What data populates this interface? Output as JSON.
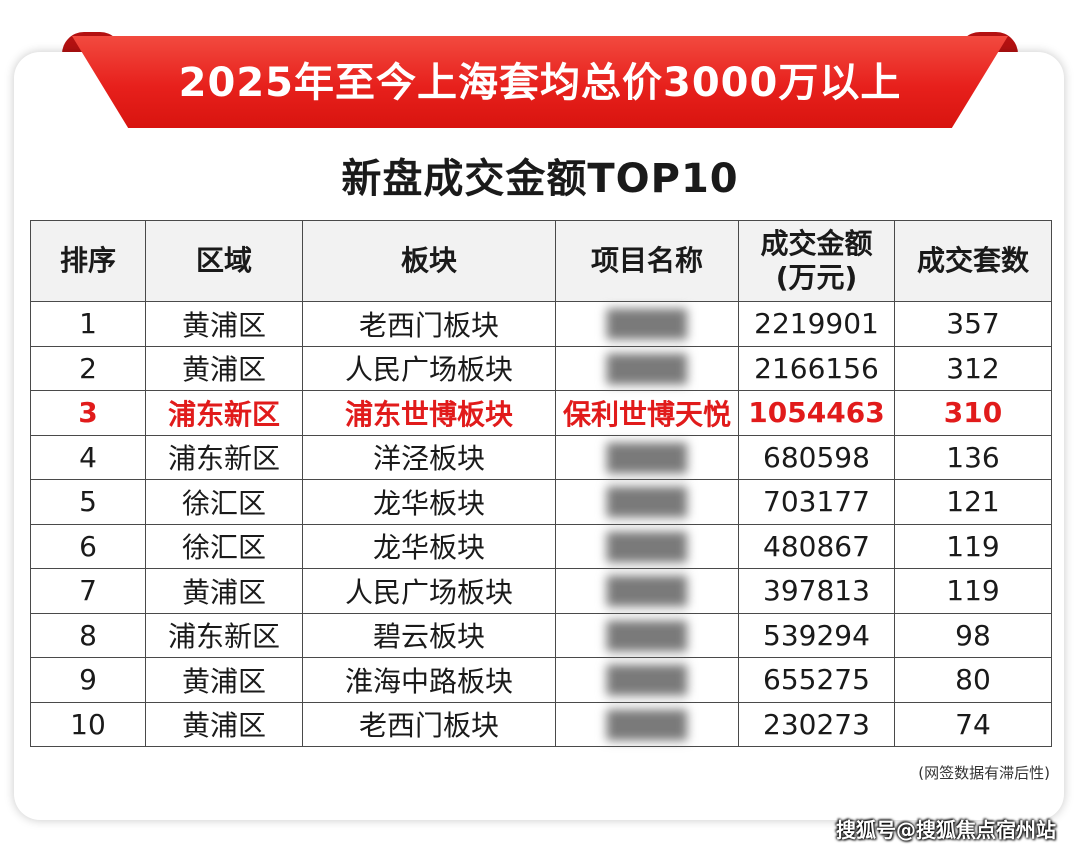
{
  "banner": {
    "title": "2025年至今上海套均总价3000万以上"
  },
  "subtitle": "新盘成交金额TOP10",
  "table": {
    "headers": [
      "排序",
      "区域",
      "板块",
      "项目名称",
      "成交金额\n(万元)",
      "成交套数"
    ],
    "rows": [
      {
        "rank": "1",
        "district": "黄浦区",
        "sector": "老西门板块",
        "project": "",
        "amount": "2219901",
        "units": "357"
      },
      {
        "rank": "2",
        "district": "黄浦区",
        "sector": "人民广场板块",
        "project": "",
        "amount": "2166156",
        "units": "312"
      },
      {
        "rank": "3",
        "district": "浦东新区",
        "sector": "浦东世博板块",
        "project": "保利世博天悦",
        "amount": "1054463",
        "units": "310"
      },
      {
        "rank": "4",
        "district": "浦东新区",
        "sector": "洋泾板块",
        "project": "",
        "amount": "680598",
        "units": "136"
      },
      {
        "rank": "5",
        "district": "徐汇区",
        "sector": "龙华板块",
        "project": "",
        "amount": "703177",
        "units": "121"
      },
      {
        "rank": "6",
        "district": "徐汇区",
        "sector": "龙华板块",
        "project": "",
        "amount": "480867",
        "units": "119"
      },
      {
        "rank": "7",
        "district": "黄浦区",
        "sector": "人民广场板块",
        "project": "",
        "amount": "397813",
        "units": "119"
      },
      {
        "rank": "8",
        "district": "浦东新区",
        "sector": "碧云板块",
        "project": "",
        "amount": "539294",
        "units": "98"
      },
      {
        "rank": "9",
        "district": "黄浦区",
        "sector": "淮海中路板块",
        "project": "",
        "amount": "655275",
        "units": "80"
      },
      {
        "rank": "10",
        "district": "黄浦区",
        "sector": "老西门板块",
        "project": "",
        "amount": "230273",
        "units": "74"
      }
    ]
  },
  "footnote": "(网签数据有滞后性)",
  "watermark": "搜狐号@搜狐焦点宿州站",
  "colors": {
    "banner_red": "#e7201c",
    "highlight_red": "#e11b1b"
  }
}
